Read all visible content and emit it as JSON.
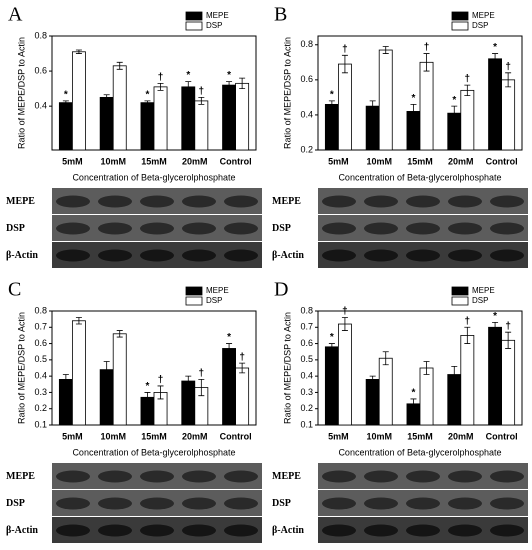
{
  "chart_data": [
    {
      "type": "bar",
      "panel": "A",
      "y_label": "Ratio of MEPE/DSP to Actin",
      "x_label": "Concentration of Beta-glycerolphosphate",
      "categories": [
        "5mM",
        "10mM",
        "15mM",
        "20mM",
        "Control"
      ],
      "series": [
        {
          "name": "MEPE",
          "color": "#000000",
          "values": [
            0.42,
            0.45,
            0.42,
            0.51,
            0.52
          ],
          "errors": [
            0.01,
            0.015,
            0.01,
            0.03,
            0.02
          ],
          "markers": [
            "*",
            null,
            "*",
            "*",
            "*"
          ]
        },
        {
          "name": "DSP",
          "color": "#ffffff",
          "values": [
            0.71,
            0.63,
            0.51,
            0.43,
            0.53
          ],
          "errors": [
            0.01,
            0.02,
            0.02,
            0.02,
            0.03
          ],
          "markers": [
            null,
            null,
            "†",
            "†",
            null
          ]
        }
      ],
      "ylim": [
        0.15,
        0.8
      ],
      "yticks": [
        0.4,
        0.6,
        0.8
      ],
      "legend": "top-right",
      "blot_labels": [
        "MEPE",
        "DSP",
        "β-Actin"
      ]
    },
    {
      "type": "bar",
      "panel": "B",
      "y_label": "Ratio of MEPE/DSP to Actin",
      "x_label": "Concentration of Beta-glycerolphosphate",
      "categories": [
        "5mM",
        "10mM",
        "15mM",
        "20mM",
        "Control"
      ],
      "series": [
        {
          "name": "MEPE",
          "color": "#000000",
          "values": [
            0.46,
            0.45,
            0.42,
            0.41,
            0.72
          ],
          "errors": [
            0.02,
            0.03,
            0.04,
            0.04,
            0.03
          ],
          "markers": [
            "*",
            null,
            "*",
            "*",
            "*"
          ]
        },
        {
          "name": "DSP",
          "color": "#ffffff",
          "values": [
            0.69,
            0.77,
            0.7,
            0.54,
            0.6
          ],
          "errors": [
            0.05,
            0.02,
            0.05,
            0.03,
            0.04
          ],
          "markers": [
            "†",
            null,
            "†",
            "†",
            "†"
          ]
        }
      ],
      "ylim": [
        0.2,
        0.85
      ],
      "yticks": [
        0.2,
        0.4,
        0.6,
        0.8
      ],
      "legend": "top-right",
      "blot_labels": [
        "MEPE",
        "DSP",
        "β-Actin"
      ]
    },
    {
      "type": "bar",
      "panel": "C",
      "y_label": "Ratio of MEPE/DSP to Actin",
      "x_label": "Concentration of Beta-glycerolphosphate",
      "categories": [
        "5mM",
        "10mM",
        "15mM",
        "20mM",
        "Control"
      ],
      "series": [
        {
          "name": "MEPE",
          "color": "#000000",
          "values": [
            0.38,
            0.44,
            0.27,
            0.37,
            0.57
          ],
          "errors": [
            0.03,
            0.05,
            0.03,
            0.03,
            0.03
          ],
          "markers": [
            null,
            null,
            "*",
            null,
            "*"
          ]
        },
        {
          "name": "DSP",
          "color": "#ffffff",
          "values": [
            0.74,
            0.66,
            0.3,
            0.33,
            0.45
          ],
          "errors": [
            0.02,
            0.02,
            0.04,
            0.05,
            0.03
          ],
          "markers": [
            null,
            null,
            "†",
            "†",
            "†"
          ]
        }
      ],
      "ylim": [
        0.1,
        0.8
      ],
      "yticks": [
        0.1,
        0.2,
        0.3,
        0.4,
        0.5,
        0.6,
        0.7,
        0.8
      ],
      "legend": "top-right",
      "blot_labels": [
        "MEPE",
        "DSP",
        "β-Actin"
      ]
    },
    {
      "type": "bar",
      "panel": "D",
      "y_label": "Ratio of MEPE/DSP to Actin",
      "x_label": "Concentration of Beta-glycerolphosphate",
      "categories": [
        "5mM",
        "10mM",
        "15mM",
        "20mM",
        "Control"
      ],
      "series": [
        {
          "name": "MEPE",
          "color": "#000000",
          "values": [
            0.58,
            0.38,
            0.23,
            0.41,
            0.7
          ],
          "errors": [
            0.02,
            0.02,
            0.03,
            0.05,
            0.03
          ],
          "markers": [
            "*",
            null,
            "*",
            null,
            "*"
          ]
        },
        {
          "name": "DSP",
          "color": "#ffffff",
          "values": [
            0.72,
            0.51,
            0.45,
            0.65,
            0.62
          ],
          "errors": [
            0.04,
            0.04,
            0.04,
            0.05,
            0.05
          ],
          "markers": [
            "†",
            null,
            null,
            "†",
            "†"
          ]
        }
      ],
      "ylim": [
        0.1,
        0.8
      ],
      "yticks": [
        0.1,
        0.2,
        0.3,
        0.4,
        0.5,
        0.6,
        0.7,
        0.8
      ],
      "legend": "top-right",
      "blot_labels": [
        "MEPE",
        "DSP",
        "β-Actin"
      ]
    }
  ]
}
